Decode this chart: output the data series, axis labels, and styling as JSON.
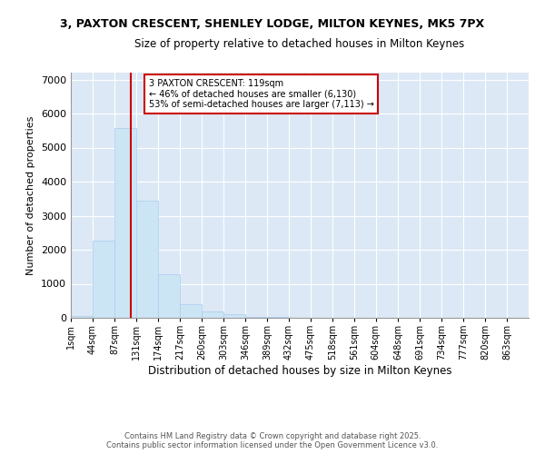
{
  "title1": "3, PAXTON CRESCENT, SHENLEY LODGE, MILTON KEYNES, MK5 7PX",
  "title2": "Size of property relative to detached houses in Milton Keynes",
  "xlabel": "Distribution of detached houses by size in Milton Keynes",
  "ylabel": "Number of detached properties",
  "footer1": "Contains HM Land Registry data © Crown copyright and database right 2025.",
  "footer2": "Contains public sector information licensed under the Open Government Licence v3.0.",
  "annotation_line1": "3 PAXTON CRESCENT: 119sqm",
  "annotation_line2": "← 46% of detached houses are smaller (6,130)",
  "annotation_line3": "53% of semi-detached houses are larger (7,113) →",
  "property_size": 119,
  "bar_color": "#cce5f5",
  "bar_edge_color": "#aaccee",
  "vline_color": "#cc0000",
  "bg_color": "#dce8f5",
  "annotation_box_color": "#cc0000",
  "categories": [
    "1sqm",
    "44sqm",
    "87sqm",
    "131sqm",
    "174sqm",
    "217sqm",
    "260sqm",
    "303sqm",
    "346sqm",
    "389sqm",
    "432sqm",
    "475sqm",
    "518sqm",
    "561sqm",
    "604sqm",
    "648sqm",
    "691sqm",
    "734sqm",
    "777sqm",
    "820sqm",
    "863sqm"
  ],
  "bin_edges": [
    1,
    44,
    87,
    131,
    174,
    217,
    260,
    303,
    346,
    389,
    432,
    475,
    518,
    561,
    604,
    648,
    691,
    734,
    777,
    820,
    863,
    906
  ],
  "values": [
    50,
    2280,
    5580,
    3430,
    1290,
    390,
    190,
    95,
    40,
    15,
    8,
    4,
    2,
    1,
    1,
    0,
    0,
    0,
    0,
    0,
    0
  ],
  "ylim": [
    0,
    7200
  ],
  "yticks": [
    0,
    1000,
    2000,
    3000,
    4000,
    5000,
    6000,
    7000
  ]
}
